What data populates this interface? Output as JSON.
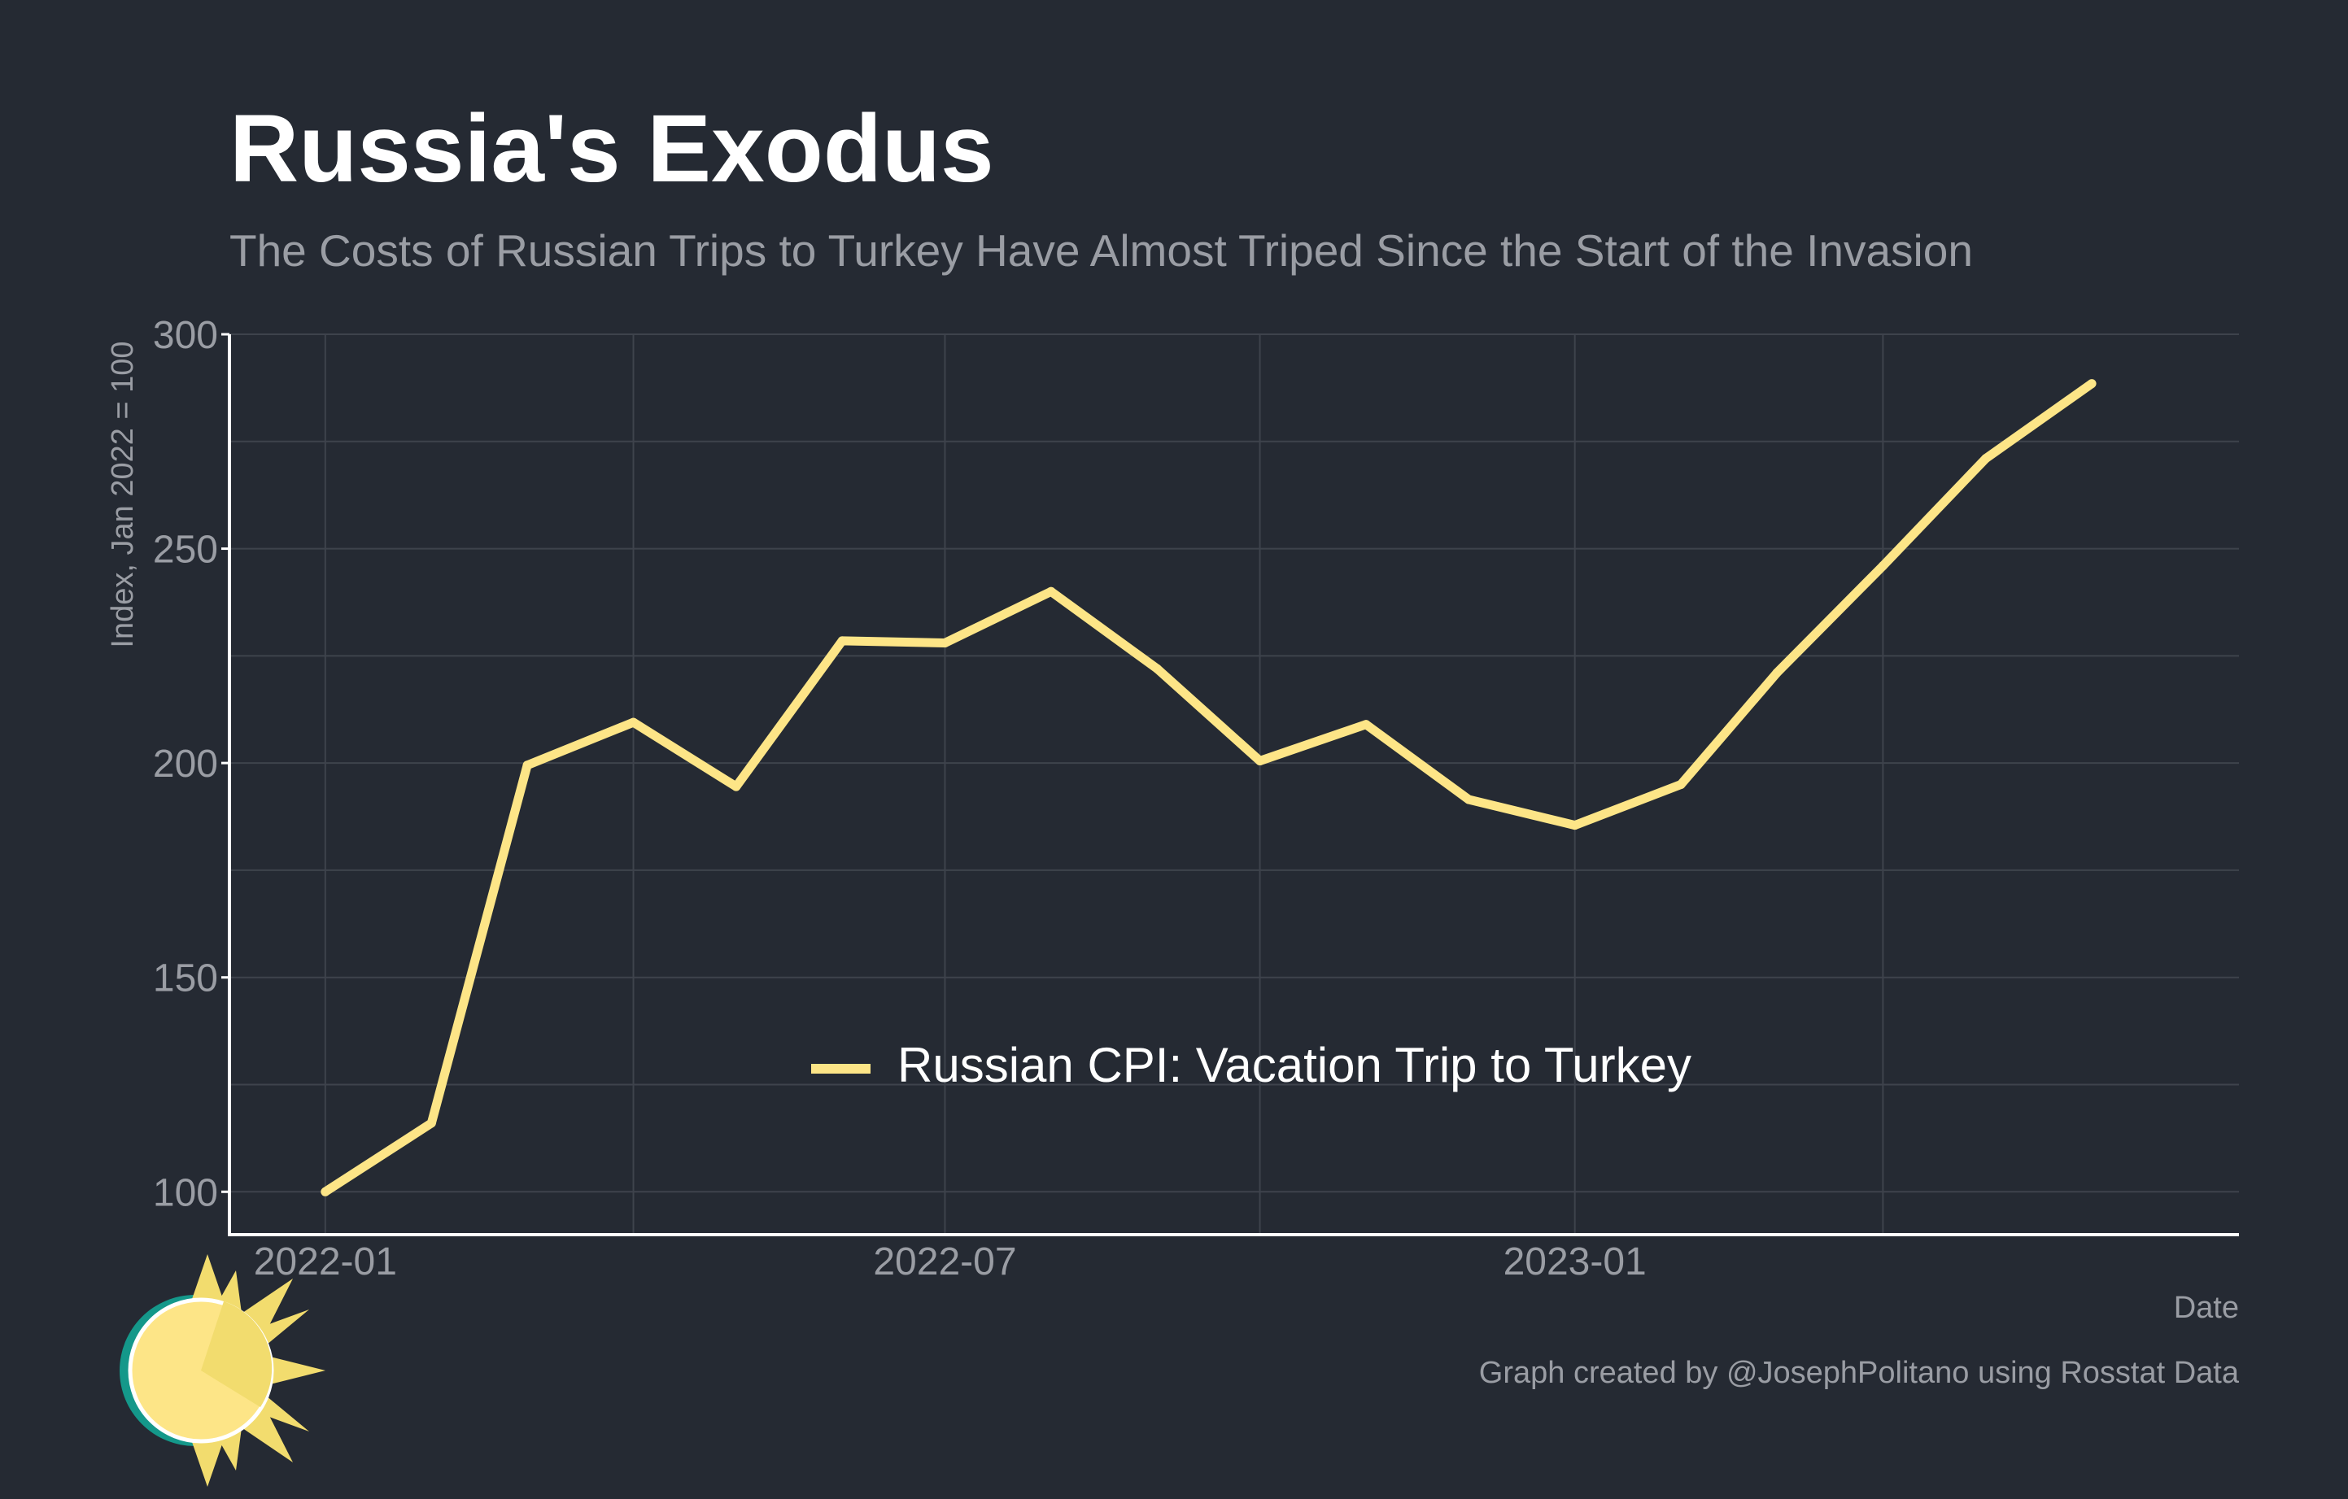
{
  "colors": {
    "background": "#252a33",
    "line": "#fde587",
    "grid": "#3e434c",
    "axis": "#ffffff",
    "muted_text": "#9a9da4",
    "logo_sun": "#f2dc6e",
    "logo_face": "#fde587",
    "logo_ring": "#14988a"
  },
  "chart_data": {
    "type": "line",
    "title": "Russia's Exodus",
    "subtitle": "The Costs of Russian Trips to Turkey Have Almost Triped Since the Start of the Invasion",
    "xlabel": "Date",
    "ylabel": "Index, Jan 2022 = 100",
    "caption": "Graph created by @JosephPolitano using Rosstat Data",
    "legend_position": "bottom-center",
    "grid": true,
    "ylim": [
      90,
      300
    ],
    "xlim": [
      "2021-12-04",
      "2023-07-14"
    ],
    "y_ticks": [
      100,
      150,
      200,
      250,
      300
    ],
    "x_tick_labels": [
      "2022-01",
      "2022-07",
      "2023-01"
    ],
    "x": [
      "2022-01",
      "2022-02",
      "2022-03",
      "2022-04",
      "2022-05",
      "2022-06",
      "2022-07",
      "2022-08",
      "2022-09",
      "2022-10",
      "2022-11",
      "2022-12",
      "2023-01",
      "2023-02",
      "2023-03",
      "2023-04",
      "2023-05",
      "2023-06"
    ],
    "series": [
      {
        "name": "Russian CPI: Vacation Trip to Turkey",
        "values": [
          100,
          116,
          199.5,
          209.5,
          194.5,
          228.5,
          228,
          240,
          222,
          200.5,
          209,
          191.5,
          185.5,
          195,
          221,
          246,
          271,
          288.5
        ]
      }
    ]
  }
}
